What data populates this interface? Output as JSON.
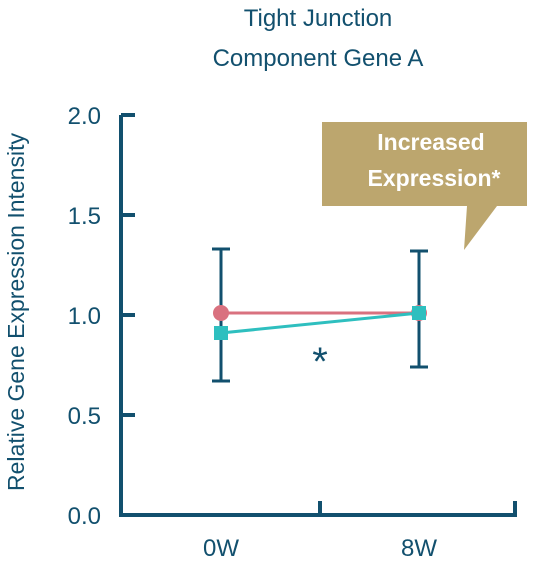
{
  "chart_data": {
    "type": "line",
    "title": [
      "Tight Junction",
      "Component Gene A"
    ],
    "xlabel": "",
    "ylabel": "Relative Gene Expression Intensity",
    "categories": [
      "0W",
      "8W"
    ],
    "ylim": [
      0,
      2.0
    ],
    "yticks": [
      "0.0",
      "0.5",
      "1.0",
      "1.5",
      "2.0"
    ],
    "grid": false,
    "series": [
      {
        "marker": "circle",
        "color": "#d9717f",
        "values": [
          1.01,
          1.01
        ]
      },
      {
        "marker": "square",
        "color": "#2ebfbf",
        "values": [
          0.91,
          1.01
        ]
      }
    ],
    "error_bars": [
      {
        "category": "0W",
        "low": 0.67,
        "high": 1.33
      },
      {
        "category": "8W",
        "low": 0.74,
        "high": 1.32
      }
    ],
    "significance_marker": "*",
    "callout": [
      "Increased",
      "Expression*"
    ],
    "colors": {
      "axis": "#12506e",
      "callout_bg": "#bca66e",
      "callout_text": "#ffffff",
      "title": "#12506e"
    }
  }
}
